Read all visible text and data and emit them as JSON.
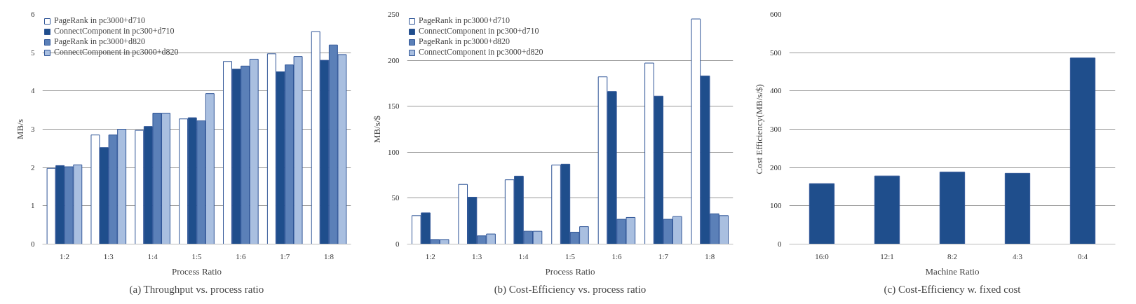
{
  "chart_data": [
    {
      "type": "bar",
      "title": "(a) Throughput vs. process ratio",
      "xlabel": "Process Ratio",
      "ylabel": "MB/s",
      "categories": [
        "1:2",
        "1:3",
        "1:4",
        "1:5",
        "1:6",
        "1:7",
        "1:8"
      ],
      "ylim": [
        0,
        6
      ],
      "yticks": [
        0,
        1,
        2,
        3,
        4,
        5,
        6
      ],
      "grid": "y",
      "legend": "top left",
      "series": [
        {
          "name": "PageRank in pc3000+d710",
          "color": "#ffffff",
          "values": [
            1.98,
            2.85,
            2.97,
            3.27,
            4.77,
            4.97,
            5.55
          ]
        },
        {
          "name": "ConnectComponent in pc300+d710",
          "color": "#1f4e8c",
          "values": [
            2.05,
            2.52,
            3.07,
            3.3,
            4.57,
            4.5,
            4.8
          ]
        },
        {
          "name": "PageRank in pc3000+d820",
          "color": "#5b80b8",
          "values": [
            2.02,
            2.85,
            3.42,
            3.22,
            4.65,
            4.68,
            5.2
          ]
        },
        {
          "name": "ConnectComponent in pc3000+d820",
          "color": "#a9bfe0",
          "values": [
            2.07,
            3.0,
            3.42,
            3.93,
            4.83,
            4.9,
            4.95
          ]
        }
      ]
    },
    {
      "type": "bar",
      "title": "(b) Cost-Efficiency vs. process ratio",
      "xlabel": "Process Ratio",
      "ylabel": "MB/s/$",
      "categories": [
        "1:2",
        "1:3",
        "1:4",
        "1:5",
        "1:6",
        "1:7",
        "1:8"
      ],
      "ylim": [
        0,
        250
      ],
      "yticks": [
        0,
        50,
        100,
        150,
        200,
        250
      ],
      "grid": "y",
      "legend": "top left",
      "series": [
        {
          "name": "PageRank in pc3000+d710",
          "color": "#ffffff",
          "values": [
            31,
            65,
            70,
            86,
            182,
            197,
            245
          ]
        },
        {
          "name": "ConnectComponent in pc300+d710",
          "color": "#1f4e8c",
          "values": [
            34,
            51,
            74,
            87,
            166,
            161,
            183
          ]
        },
        {
          "name": "PageRank in pc3000+d820",
          "color": "#5b80b8",
          "values": [
            5,
            9,
            14,
            13,
            27,
            27,
            33
          ]
        },
        {
          "name": "ConnectComponent in pc3000+d820",
          "color": "#a9bfe0",
          "values": [
            5,
            11,
            14,
            19,
            29,
            30,
            31
          ]
        }
      ]
    },
    {
      "type": "bar",
      "title": "(c) Cost-Efficiency w. fixed cost",
      "xlabel": "Machine Ratio",
      "ylabel": "Cost Efficiency(MB/s/$)",
      "categories": [
        "16:0",
        "12:1",
        "8:2",
        "4:3",
        "0:4"
      ],
      "ylim": [
        0,
        600
      ],
      "yticks": [
        0,
        100,
        200,
        300,
        400,
        500,
        600
      ],
      "grid": "y",
      "series": [
        {
          "color": "#1f4e8c",
          "values": [
            158,
            178,
            188,
            185,
            486
          ]
        }
      ]
    }
  ]
}
